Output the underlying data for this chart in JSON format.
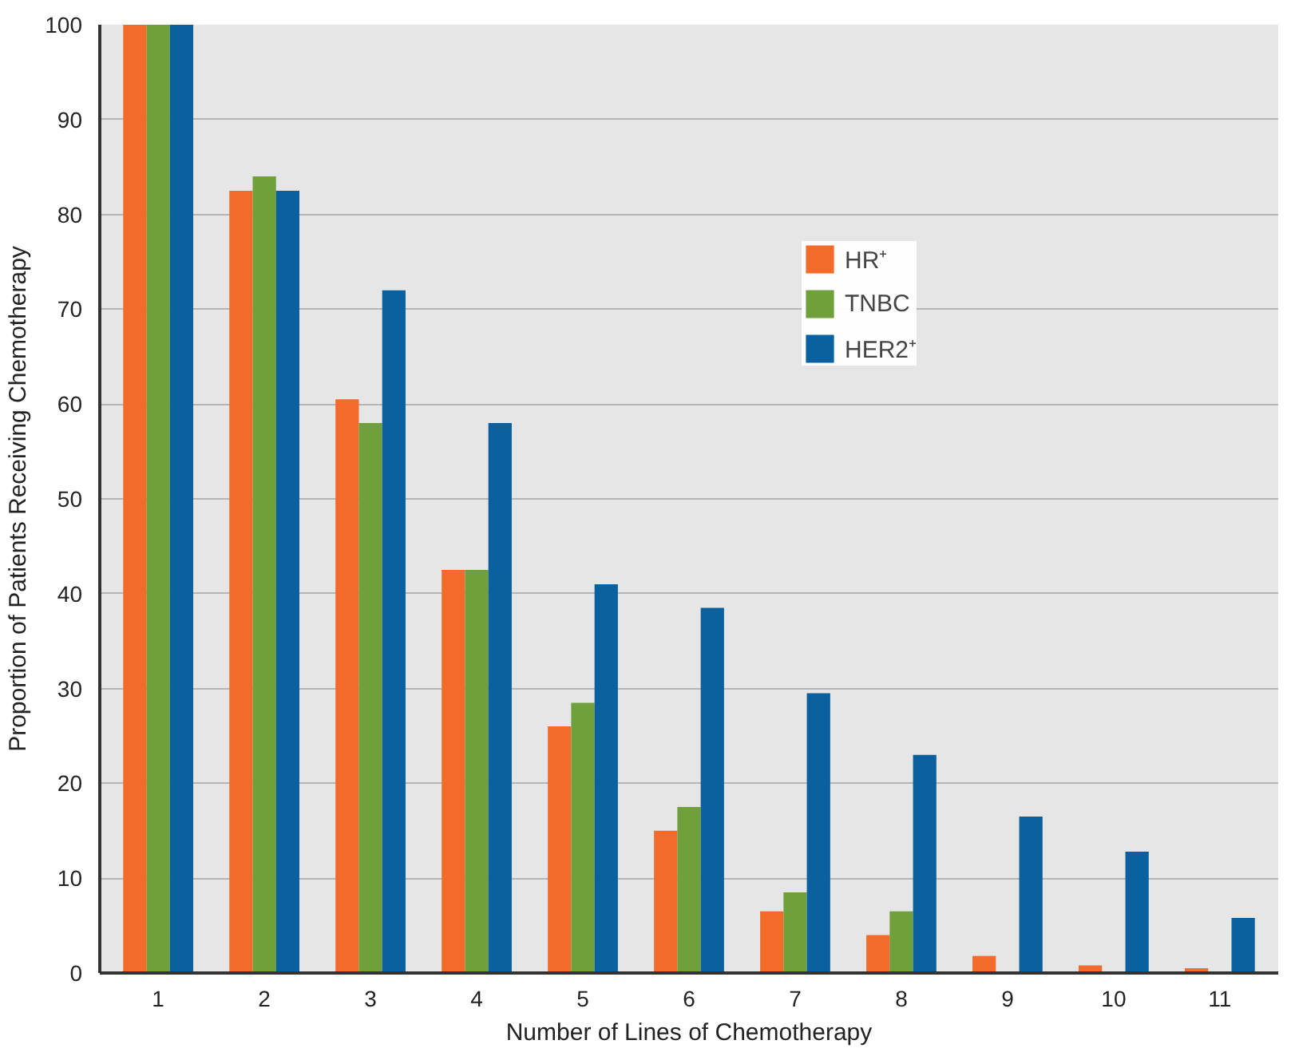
{
  "chart_data": {
    "type": "bar",
    "xlabel": "Number of Lines of Chemotherapy",
    "ylabel": "Proportion of Patients Receiving Chemotherapy",
    "categories": [
      "1",
      "2",
      "3",
      "4",
      "5",
      "6",
      "7",
      "8",
      "9",
      "10",
      "11"
    ],
    "series": [
      {
        "name": "HR⁺",
        "color": "#f26b2b",
        "values": [
          100,
          82.5,
          60.5,
          42.5,
          26,
          15,
          6.5,
          4,
          1.8,
          0.8,
          0.5
        ]
      },
      {
        "name": "TNBC",
        "color": "#6fa03c",
        "values": [
          100,
          84,
          58,
          42.5,
          28.5,
          17.5,
          8.5,
          6.5,
          null,
          null,
          null
        ]
      },
      {
        "name": "HER2⁺",
        "color": "#0b60a0",
        "values": [
          100,
          82.5,
          72,
          58,
          41,
          38.5,
          29.5,
          23,
          16.5,
          12.8,
          5.8
        ]
      }
    ],
    "ylim": [
      0,
      100
    ],
    "yticks": [
      0,
      10,
      20,
      30,
      40,
      50,
      60,
      70,
      80,
      90,
      100
    ],
    "grid": "y",
    "legend": "top right"
  }
}
